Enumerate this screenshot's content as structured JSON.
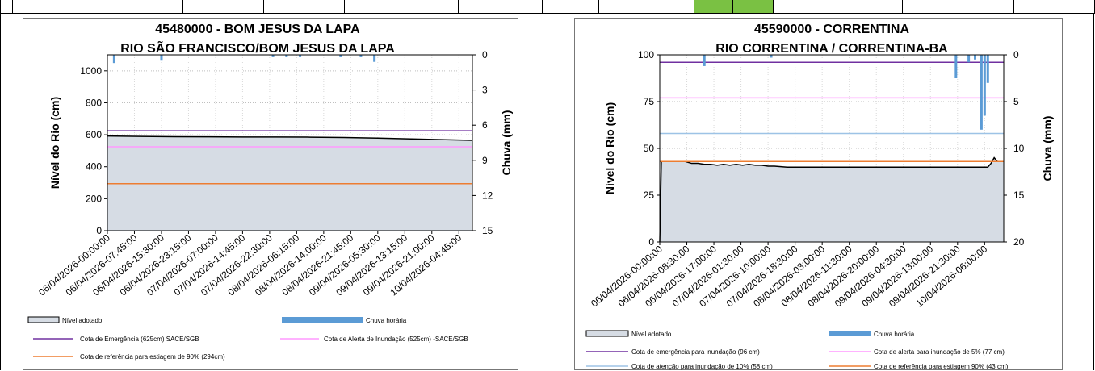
{
  "chart_data": [
    {
      "type": "line",
      "title": "45480000 - BOM JESUS DA LAPA",
      "subtitle": "RIO SÃO FRANCISCO/BOM JESUS DA LAPA",
      "ylabel": "Nível do Rio (cm)",
      "y2label": "Chuva (mm)",
      "ylim": [
        0,
        1100
      ],
      "yticks": [
        0,
        200,
        400,
        600,
        800,
        1000
      ],
      "y2lim": [
        0,
        15
      ],
      "y2ticks": [
        0,
        3,
        6,
        9,
        12,
        15
      ],
      "y2_inverted": true,
      "grid": true,
      "xticks": [
        "06/04/2026-00:00:00",
        "06/04/2026-07:45:00",
        "06/04/2026-15:30:00",
        "06/04/2026-23:15:00",
        "07/04/2026-07:00:00",
        "07/04/2026-14:45:00",
        "07/04/2026-22:30:00",
        "08/04/2026-06:15:00",
        "08/04/2026-14:00:00",
        "08/04/2026-21:45:00",
        "09/04/2026-05:30:00",
        "09/04/2026-13:15:00",
        "09/04/2026-21:00:00",
        "10/04/2026-04:45:00"
      ],
      "x_hours": [
        0,
        8,
        16,
        24,
        32,
        40,
        48,
        56,
        64,
        72,
        80,
        88,
        96,
        104
      ],
      "x_max_hours": 108,
      "series": [
        {
          "name": "Nível adotado",
          "type": "area",
          "color": "#d6dce4",
          "line_color": "#000000",
          "x": [
            0,
            10,
            20,
            30,
            40,
            50,
            60,
            70,
            80,
            90,
            100,
            108
          ],
          "values": [
            592,
            590,
            588,
            587,
            586,
            586,
            585,
            583,
            579,
            574,
            569,
            565
          ]
        },
        {
          "name": "Chuva horária",
          "type": "bar",
          "color": "#5b9bd5",
          "x": [
            2,
            16,
            49,
            53,
            57,
            69,
            75,
            79
          ],
          "values": [
            0.7,
            0.5,
            0.2,
            0.2,
            0.2,
            0.2,
            0.2,
            0.6
          ]
        },
        {
          "name": "Cota de Emergência   (625cm) SACE/SGB",
          "type": "hline",
          "value": 625,
          "color": "#7030a0"
        },
        {
          "name": "Cota de Alerta  de Inundação (525cm) -SACE/SGB",
          "type": "hline",
          "value": 525,
          "color": "#ff99ff"
        },
        {
          "name": "Cota de referência para estiagem de 90% (294cm)",
          "type": "hline",
          "value": 294,
          "color": "#ed7d31"
        }
      ]
    },
    {
      "type": "line",
      "title": "45590000 - CORRENTINA",
      "subtitle": "RIO CORRENTINA / CORRENTINA-BA",
      "ylabel": "Nível do Rio  (cm)",
      "y2label": "Chuva (mm)",
      "ylim": [
        0,
        100
      ],
      "yticks": [
        0,
        25,
        50,
        75,
        100
      ],
      "y2lim": [
        0,
        20
      ],
      "y2ticks": [
        0,
        5,
        10,
        15,
        20
      ],
      "y2_inverted": true,
      "grid": true,
      "xticks": [
        "06/04/2026-00:00:00",
        "06/04/2026-08:30:00",
        "06/04/2026-17:00:00",
        "07/04/2026-01:30:00",
        "07/04/2026-10:00:00",
        "07/04/2026-18:30:00",
        "08/04/2026-03:00:00",
        "08/04/2026-11:30:00",
        "08/04/2026-20:00:00",
        "09/04/2026-04:30:00",
        "09/04/2026-13:00:00",
        "09/04/2026-21:30:00",
        "10/04/2026-06:00:00"
      ],
      "x_hours": [
        0,
        8.5,
        17,
        25.5,
        34,
        42.5,
        51,
        59.5,
        68,
        76.5,
        85,
        93.5,
        102
      ],
      "x_max_hours": 108,
      "series": [
        {
          "name": "Nível adotado",
          "type": "area",
          "color": "#d6dce4",
          "line_color": "#000000",
          "x": [
            0,
            0.5,
            8,
            10,
            12,
            14,
            16,
            18,
            20,
            22,
            24,
            26,
            28,
            30,
            32,
            34,
            36,
            40,
            50,
            60,
            70,
            80,
            90,
            100,
            103,
            104,
            105,
            106,
            108
          ],
          "values": [
            0,
            43,
            43,
            42,
            42,
            41.5,
            41.5,
            41,
            41.5,
            41,
            41.5,
            41,
            41.5,
            41,
            41,
            40.5,
            40.5,
            40,
            40,
            40,
            40,
            40,
            40,
            40,
            40,
            42,
            45,
            43,
            43
          ]
        },
        {
          "name": "Chuva horária",
          "type": "bar",
          "color": "#5b9bd5",
          "x": [
            14,
            35,
            93,
            97,
            99,
            101,
            102,
            103
          ],
          "values": [
            1.2,
            0.3,
            2.5,
            0.8,
            0.5,
            8,
            6.5,
            3
          ]
        },
        {
          "name": "Cota de emergência para inundação (96 cm)",
          "type": "hline",
          "value": 96,
          "color": "#7030a0"
        },
        {
          "name": "Cota de alerta para inundação de 5% (77 cm)",
          "type": "hline",
          "value": 77,
          "color": "#ff99ff"
        },
        {
          "name": "Cota de atenção para inundação de 10% (58 cm)",
          "type": "hline",
          "value": 58,
          "color": "#9dc3e6"
        },
        {
          "name": "Cota de referência para estiagem 90% (43 cm)",
          "type": "hline",
          "value": 43,
          "color": "#ed7d31"
        }
      ]
    }
  ],
  "legend1": {
    "nivel": "Nível adotado",
    "chuva": "Chuva horária",
    "emergencia": "Cota de Emergência   (625cm) SACE/SGB",
    "alerta": "Cota de Alerta  de Inundação (525cm) -SACE/SGB",
    "estiagem": "Cota de referência para  estiagem de 90% (294cm)"
  },
  "legend2": {
    "nivel": "Nível adotado",
    "chuva": "Chuva horária",
    "emergencia": "Cota de emergência para inundação (96 cm)",
    "alerta": "Cota de alerta para inundação de 5% (77 cm)",
    "atencao": "Cota de atenção para inundação de 10% (58 cm)",
    "estiagem": "Cota de referência para estiagem 90% (43 cm)"
  }
}
